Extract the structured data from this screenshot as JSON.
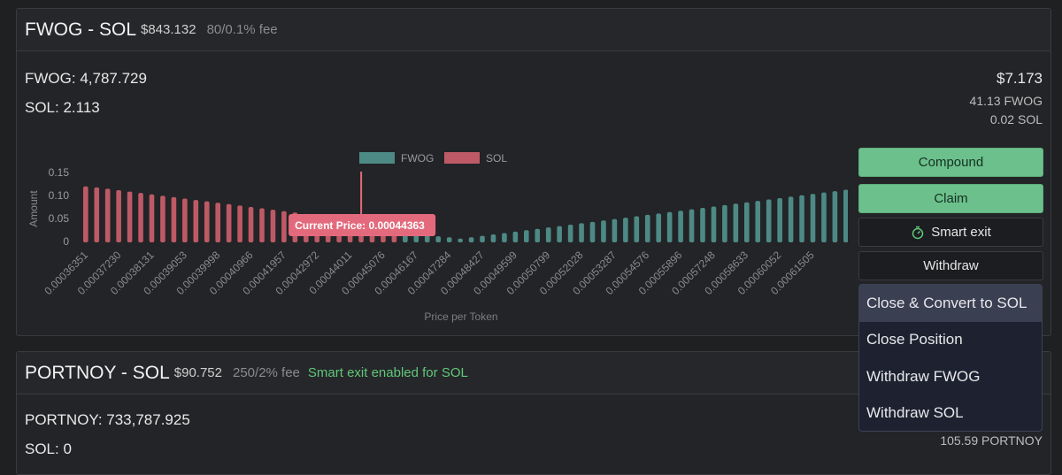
{
  "positions": [
    {
      "title": "FWOG - SOL",
      "value": "$843.132",
      "fee": "80/0.1% fee",
      "balance_a": "FWOG: 4,787.729",
      "balance_b": "SOL: 2.113",
      "fees_value": "$7.173",
      "fees_a": "41.13 FWOG",
      "fees_b": "0.02 SOL",
      "buttons": {
        "compound": "Compound",
        "claim": "Claim",
        "smart_exit": "Smart exit",
        "withdraw": "Withdraw"
      },
      "menu": [
        "Close & Convert to SOL",
        "Close Position",
        "Withdraw FWOG",
        "Withdraw SOL"
      ]
    },
    {
      "title": "PORTNOY - SOL",
      "value": "$90.752",
      "fee": "250/2% fee",
      "smart_note": "Smart exit enabled for SOL",
      "balance_a": "PORTNOY: 733,787.925",
      "balance_b": "SOL: 0",
      "fees_a": "105.59 PORTNOY"
    }
  ],
  "colors": {
    "token_a": "#4d8a85",
    "token_b": "#bd5a66",
    "accent": "#6cc08b",
    "tooltip": "#e36a7c"
  },
  "chart_data": {
    "type": "bar",
    "xlabel": "Price per Token",
    "ylabel": "Amount",
    "ylim": [
      0,
      0.15
    ],
    "yticks": [
      "0.15",
      "0.10",
      "0.05",
      "0"
    ],
    "legend": [
      {
        "name": "FWOG",
        "color": "#4d8a85"
      },
      {
        "name": "SOL",
        "color": "#bd5a66"
      }
    ],
    "current_price_label": "Current Price: 0.00044363",
    "current_price_index": 25,
    "tick_labels": [
      "0.00036351",
      "0.00037230",
      "0.00038131",
      "0.00039053",
      "0.00039998",
      "0.00040966",
      "0.00041957",
      "0.00042972",
      "0.00044011",
      "0.00045076",
      "0.00046167",
      "0.00047284",
      "0.00048427",
      "0.00049599",
      "0.00050799",
      "0.00052028",
      "0.00053287",
      "0.00054576",
      "0.00055896",
      "0.00057248",
      "0.00058633",
      "0.00060052",
      "0.00061505"
    ],
    "series": [
      {
        "name": "SOL",
        "values": [
          0.12,
          0.118,
          0.115,
          0.112,
          0.109,
          0.106,
          0.103,
          0.1,
          0.097,
          0.094,
          0.091,
          0.088,
          0.085,
          0.082,
          0.079,
          0.076,
          0.073,
          0.07,
          0.067,
          0.064,
          0.061,
          0.058,
          0.055,
          0.052,
          0.049,
          0.046,
          0.034,
          0.026,
          0.019
        ]
      },
      {
        "name": "FWOG",
        "values": [
          0.027,
          0.023,
          0.019,
          0.013,
          0.011,
          0.008,
          0.011,
          0.014,
          0.017,
          0.02,
          0.023,
          0.026,
          0.029,
          0.032,
          0.035,
          0.038,
          0.041,
          0.044,
          0.047,
          0.05,
          0.053,
          0.056,
          0.059,
          0.062,
          0.065,
          0.068,
          0.071,
          0.074,
          0.077,
          0.08,
          0.083,
          0.086,
          0.089,
          0.092,
          0.095,
          0.098,
          0.101,
          0.104,
          0.107,
          0.11,
          0.113,
          0.116,
          0.119
        ]
      }
    ]
  }
}
